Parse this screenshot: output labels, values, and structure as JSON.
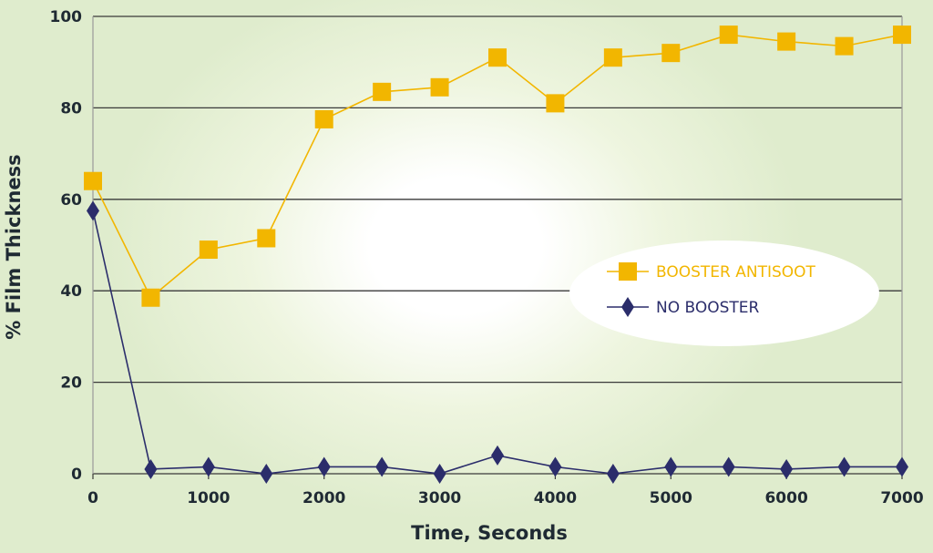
{
  "chart_data": {
    "type": "line",
    "xlabel": "Time, Seconds",
    "ylabel": "% Film Thickness",
    "xlim": [
      0,
      7000
    ],
    "ylim": [
      0,
      100
    ],
    "xticks": [
      0,
      1000,
      2000,
      3000,
      4000,
      5000,
      6000,
      7000
    ],
    "yticks": [
      0,
      20,
      40,
      60,
      80,
      100
    ],
    "grid": "horizontal",
    "legend_position": "right",
    "x": [
      0,
      500,
      1000,
      1500,
      2000,
      2500,
      3000,
      3500,
      4000,
      4500,
      5000,
      5500,
      6000,
      6500,
      7000
    ],
    "series": [
      {
        "name": "BOOSTER ANTISOOT",
        "color": "#f2b600",
        "marker": "square",
        "values": [
          64,
          38.5,
          49,
          51.5,
          77.5,
          83.5,
          84.5,
          91,
          81,
          91,
          92,
          96,
          94.5,
          93.5,
          96
        ]
      },
      {
        "name": "NO BOOSTER",
        "color": "#2b2d6b",
        "marker": "diamond",
        "values": [
          57.5,
          1,
          1.5,
          0,
          1.5,
          1.5,
          0,
          4,
          1.5,
          0,
          1.5,
          1.5,
          1,
          1.5,
          1.5
        ]
      }
    ]
  }
}
